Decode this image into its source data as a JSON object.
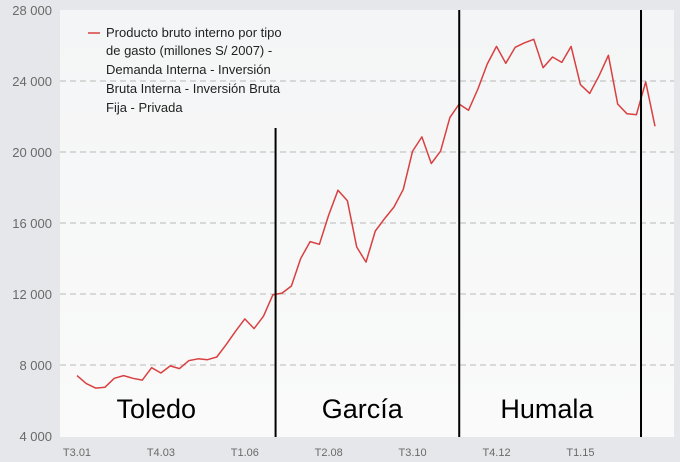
{
  "chart_data": {
    "type": "line",
    "title": "",
    "xlabel": "",
    "ylabel": "",
    "ylim": [
      4000,
      28000
    ],
    "y_ticks": [
      "4 000",
      "8 000",
      "12 000",
      "16 000",
      "20 000",
      "24 000",
      "28 000"
    ],
    "y_tick_values": [
      4000,
      8000,
      12000,
      16000,
      20000,
      24000,
      28000
    ],
    "grid": "horizontal dashed",
    "legend_position": "top-left",
    "x_tick_labels": [
      "T3.01",
      "T4.03",
      "T1.06",
      "T2.08",
      "T3.10",
      "T4.12",
      "T1.15"
    ],
    "x_tick_indices": [
      0,
      9,
      18,
      27,
      36,
      45,
      54
    ],
    "x": [
      "T3.01",
      "T4.01",
      "T1.02",
      "T2.02",
      "T3.02",
      "T4.02",
      "T1.03",
      "T2.03",
      "T3.03",
      "T4.03",
      "T1.04",
      "T2.04",
      "T3.04",
      "T4.04",
      "T1.05",
      "T2.05",
      "T3.05",
      "T4.05",
      "T1.06",
      "T2.06",
      "T3.06",
      "T4.06",
      "T1.07",
      "T2.07",
      "T3.07",
      "T4.07",
      "T1.08",
      "T2.08",
      "T3.08",
      "T4.08",
      "T1.09",
      "T2.09",
      "T3.09",
      "T4.09",
      "T1.10",
      "T2.10",
      "T3.10",
      "T4.10",
      "T1.11",
      "T2.11",
      "T3.11",
      "T4.11",
      "T1.12",
      "T2.12",
      "T3.12",
      "T4.12",
      "T1.13",
      "T2.13",
      "T3.13",
      "T4.13",
      "T1.14",
      "T2.14",
      "T3.14",
      "T4.14",
      "T1.15",
      "T2.15",
      "T3.15",
      "T4.15",
      "T1.16",
      "T2.16",
      "T3.16",
      "T4.16",
      "T1.17"
    ],
    "series": [
      {
        "name": "Producto bruto interno por tipo de gasto (millones S/ 2007) - Demanda Interna - Inversión Bruta Interna - Inversión Bruta Fija - Privada",
        "color": "#d94040",
        "values": [
          7400,
          6950,
          6700,
          6750,
          7250,
          7400,
          7250,
          7150,
          7850,
          7550,
          7950,
          7800,
          8250,
          8350,
          8300,
          8450,
          9150,
          9900,
          10600,
          10050,
          10750,
          11950,
          12050,
          12450,
          14000,
          14950,
          14800,
          16450,
          17850,
          17250,
          14650,
          13800,
          15550,
          16250,
          16900,
          17900,
          20050,
          20850,
          19350,
          20050,
          21950,
          22700,
          22350,
          23550,
          24950,
          25950,
          25000,
          25900,
          26150,
          26350,
          24750,
          25350,
          25050,
          25950,
          23800,
          23300,
          24300,
          25450,
          22700,
          22150,
          22100,
          23950,
          21450
        ]
      }
    ],
    "dividers_at_index": [
      21.3,
      41.0,
      60.5
    ],
    "eras": [
      {
        "label": "Toledo",
        "center_index": 8.5
      },
      {
        "label": "García",
        "center_index": 30.6
      },
      {
        "label": "Humala",
        "center_index": 50.4
      }
    ],
    "legend_lines": [
      "Producto bruto interno por tipo",
      "de gasto (millones S/ 2007) -",
      "Demanda Interna - Inversión",
      "Bruta Interna - Inversión Bruta",
      "Fija - Privada"
    ]
  }
}
